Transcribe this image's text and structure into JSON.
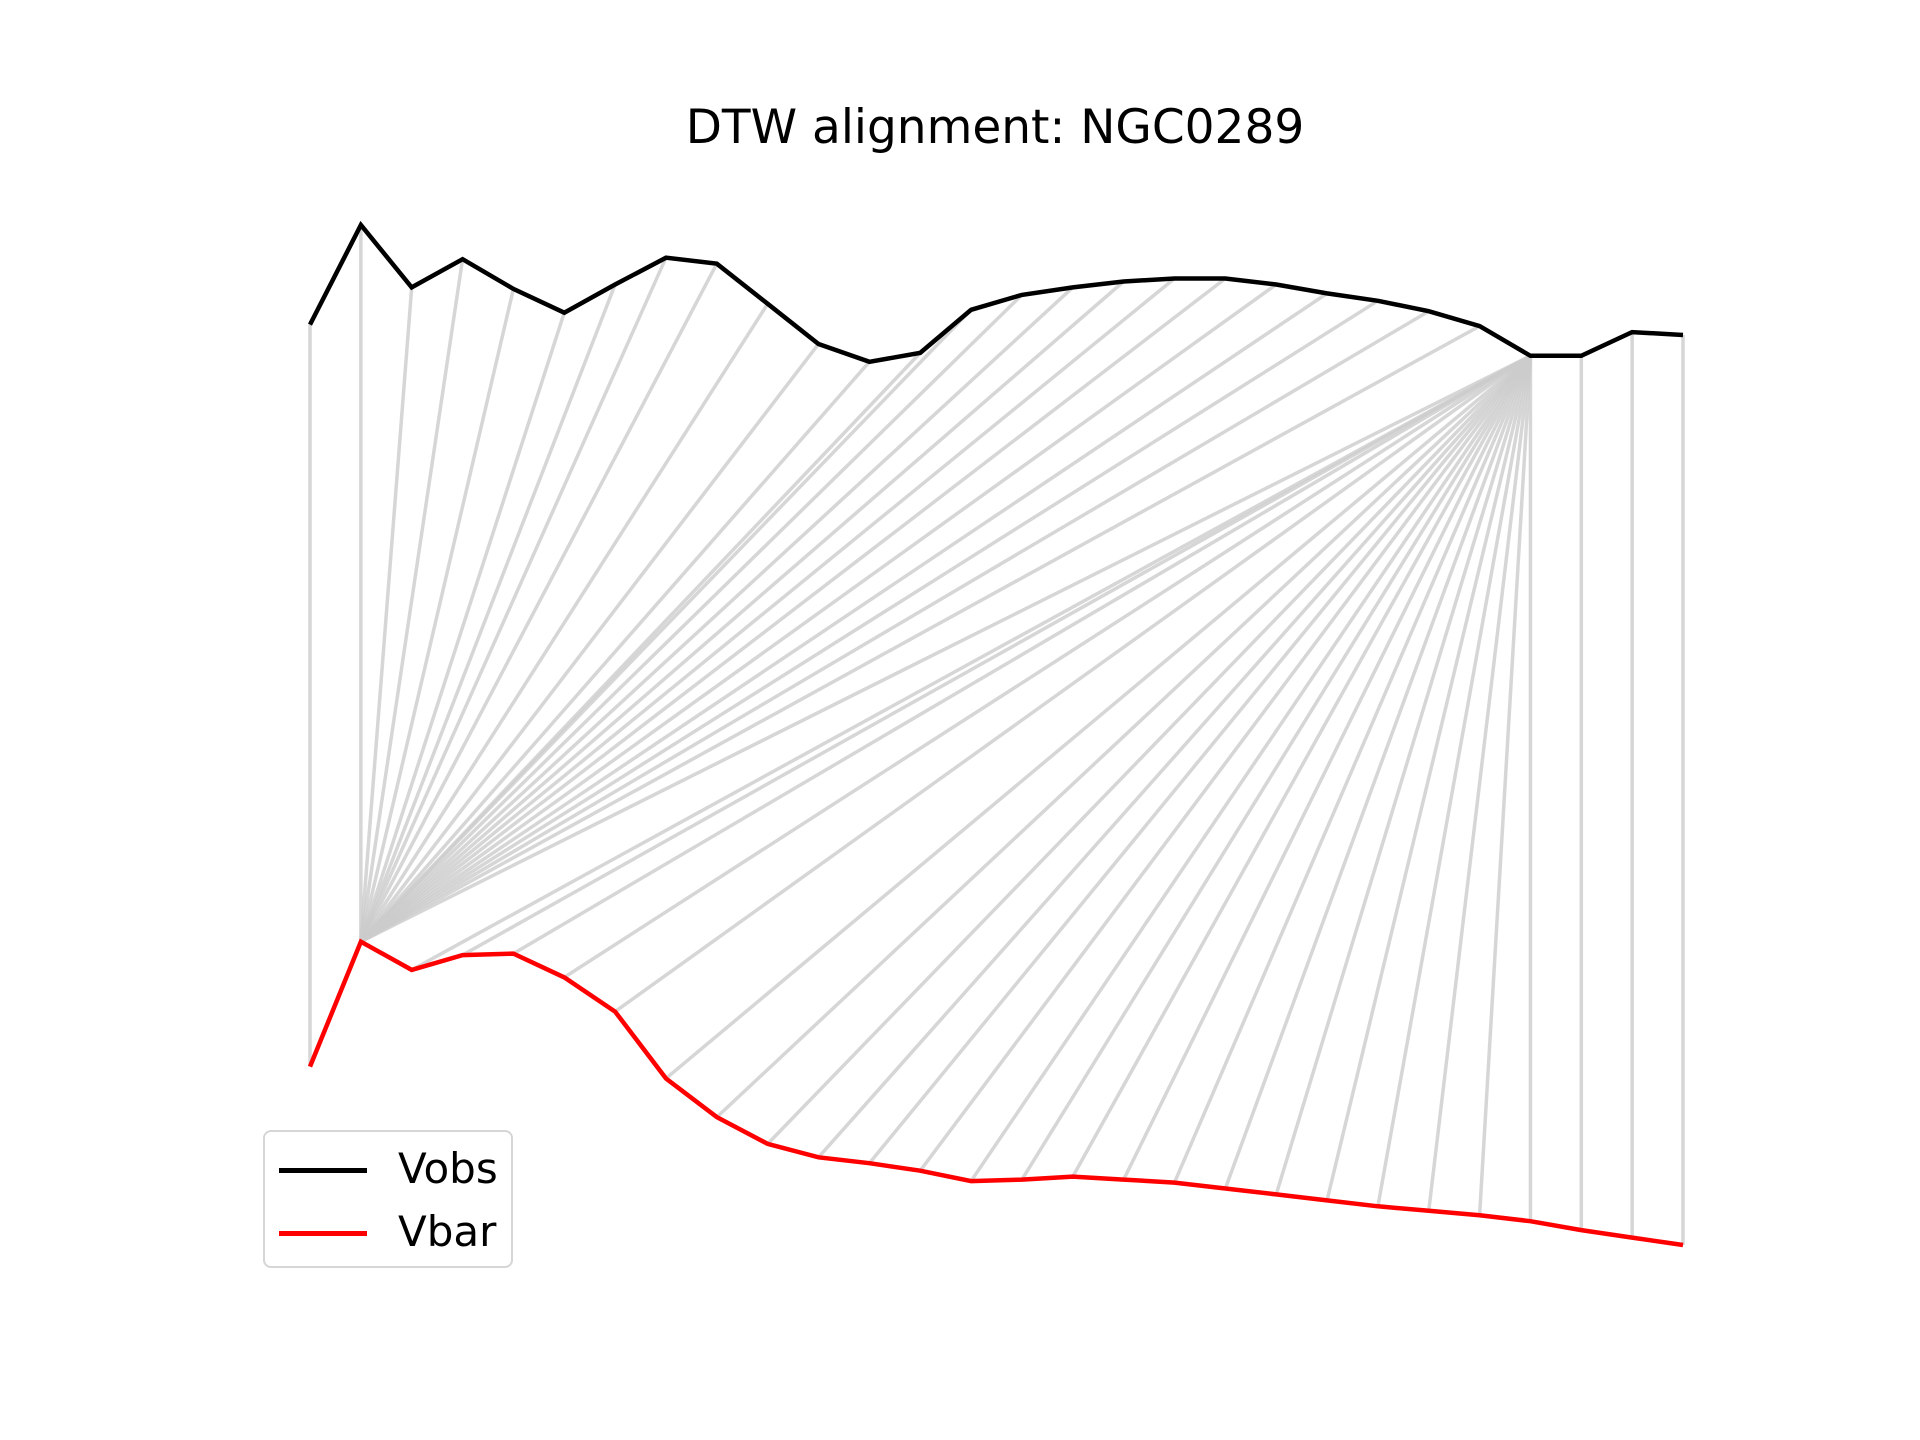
{
  "chart_data": {
    "type": "line",
    "title": "DTW alignment: NGC0289",
    "xlabel": "",
    "ylabel": "",
    "axes_visible": false,
    "legend_placement": "lower-left",
    "series": [
      {
        "name": "Vobs",
        "color": "#000000",
        "values": [
          2.28,
          2.95,
          2.53,
          2.72,
          2.52,
          2.36,
          2.55,
          2.73,
          2.69,
          2.42,
          2.15,
          2.03,
          2.09,
          2.38,
          2.48,
          2.53,
          2.57,
          2.59,
          2.59,
          2.55,
          2.49,
          2.44,
          2.37,
          2.27,
          2.07,
          2.07,
          2.23,
          2.21
        ]
      },
      {
        "name": "Vbar",
        "color": "#ff0000",
        "values": [
          -2.71,
          -1.87,
          -2.06,
          -1.96,
          -1.95,
          -2.11,
          -2.34,
          -2.79,
          -3.05,
          -3.23,
          -3.32,
          -3.36,
          -3.41,
          -3.48,
          -3.47,
          -3.45,
          -3.47,
          -3.49,
          -3.53,
          -3.57,
          -3.61,
          -3.65,
          -3.68,
          -3.71,
          -3.75,
          -3.81,
          -3.86,
          -3.91
        ]
      }
    ],
    "alignment_path": [
      [
        0,
        0
      ],
      [
        1,
        1
      ],
      [
        2,
        1
      ],
      [
        3,
        1
      ],
      [
        4,
        1
      ],
      [
        5,
        1
      ],
      [
        6,
        1
      ],
      [
        7,
        1
      ],
      [
        8,
        1
      ],
      [
        9,
        1
      ],
      [
        10,
        1
      ],
      [
        11,
        1
      ],
      [
        12,
        1
      ],
      [
        13,
        1
      ],
      [
        14,
        1
      ],
      [
        15,
        1
      ],
      [
        16,
        1
      ],
      [
        17,
        1
      ],
      [
        18,
        1
      ],
      [
        19,
        1
      ],
      [
        20,
        1
      ],
      [
        21,
        1
      ],
      [
        22,
        1
      ],
      [
        23,
        1
      ],
      [
        24,
        1
      ],
      [
        24,
        2
      ],
      [
        24,
        3
      ],
      [
        24,
        4
      ],
      [
        24,
        5
      ],
      [
        24,
        6
      ],
      [
        24,
        7
      ],
      [
        24,
        8
      ],
      [
        24,
        9
      ],
      [
        24,
        10
      ],
      [
        24,
        11
      ],
      [
        24,
        12
      ],
      [
        24,
        13
      ],
      [
        24,
        14
      ],
      [
        24,
        15
      ],
      [
        24,
        16
      ],
      [
        24,
        17
      ],
      [
        24,
        18
      ],
      [
        24,
        19
      ],
      [
        24,
        20
      ],
      [
        24,
        21
      ],
      [
        24,
        22
      ],
      [
        24,
        23
      ],
      [
        24,
        24
      ],
      [
        25,
        25
      ],
      [
        26,
        26
      ],
      [
        27,
        27
      ]
    ],
    "alignment_color": "#cccccc"
  }
}
